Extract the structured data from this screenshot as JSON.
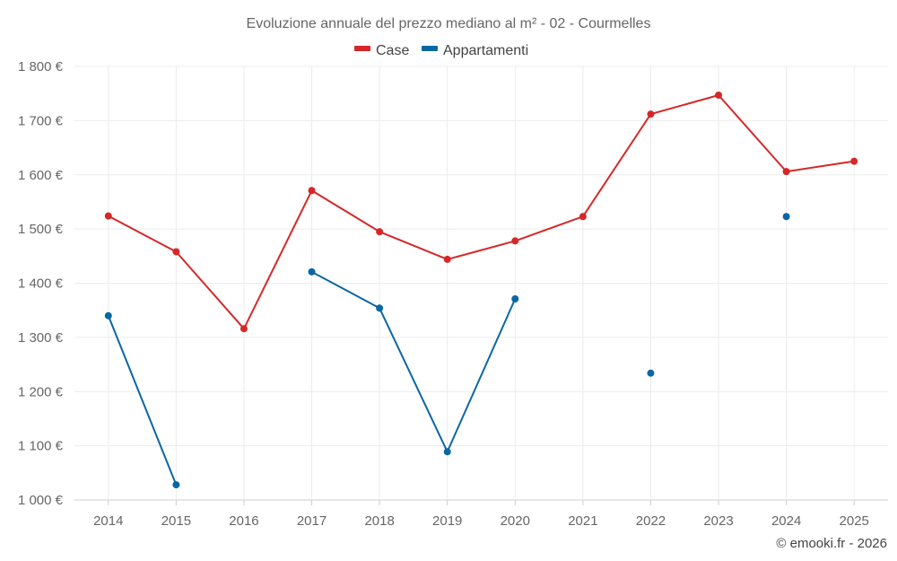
{
  "chart_data": {
    "type": "line",
    "title": "Evoluzione annuale del prezzo mediano al m² - 02 - Courmelles",
    "xlabel": "",
    "ylabel": "",
    "categories": [
      "2014",
      "2015",
      "2016",
      "2017",
      "2018",
      "2019",
      "2020",
      "2021",
      "2022",
      "2023",
      "2024",
      "2025"
    ],
    "ylim": [
      1000,
      1800
    ],
    "yticks": [
      1000,
      1100,
      1200,
      1300,
      1400,
      1500,
      1600,
      1700,
      1800
    ],
    "ytick_labels": [
      "1 000 €",
      "1 100 €",
      "1 200 €",
      "1 300 €",
      "1 400 €",
      "1 500 €",
      "1 600 €",
      "1 700 €",
      "1 800 €"
    ],
    "grid": true,
    "legend_position": "top-center",
    "series": [
      {
        "name": "Case",
        "color": "#d62728",
        "values": [
          1524,
          1458,
          1316,
          1571,
          1495,
          1444,
          1478,
          1523,
          1712,
          1747,
          1606,
          1625
        ]
      },
      {
        "name": "Appartamenti",
        "color": "#0a67a3",
        "values": [
          1340,
          1028,
          null,
          1421,
          1354,
          1089,
          1371,
          null,
          1234,
          null,
          1523,
          null
        ]
      }
    ],
    "credit": "© emooki.fr - 2026"
  }
}
